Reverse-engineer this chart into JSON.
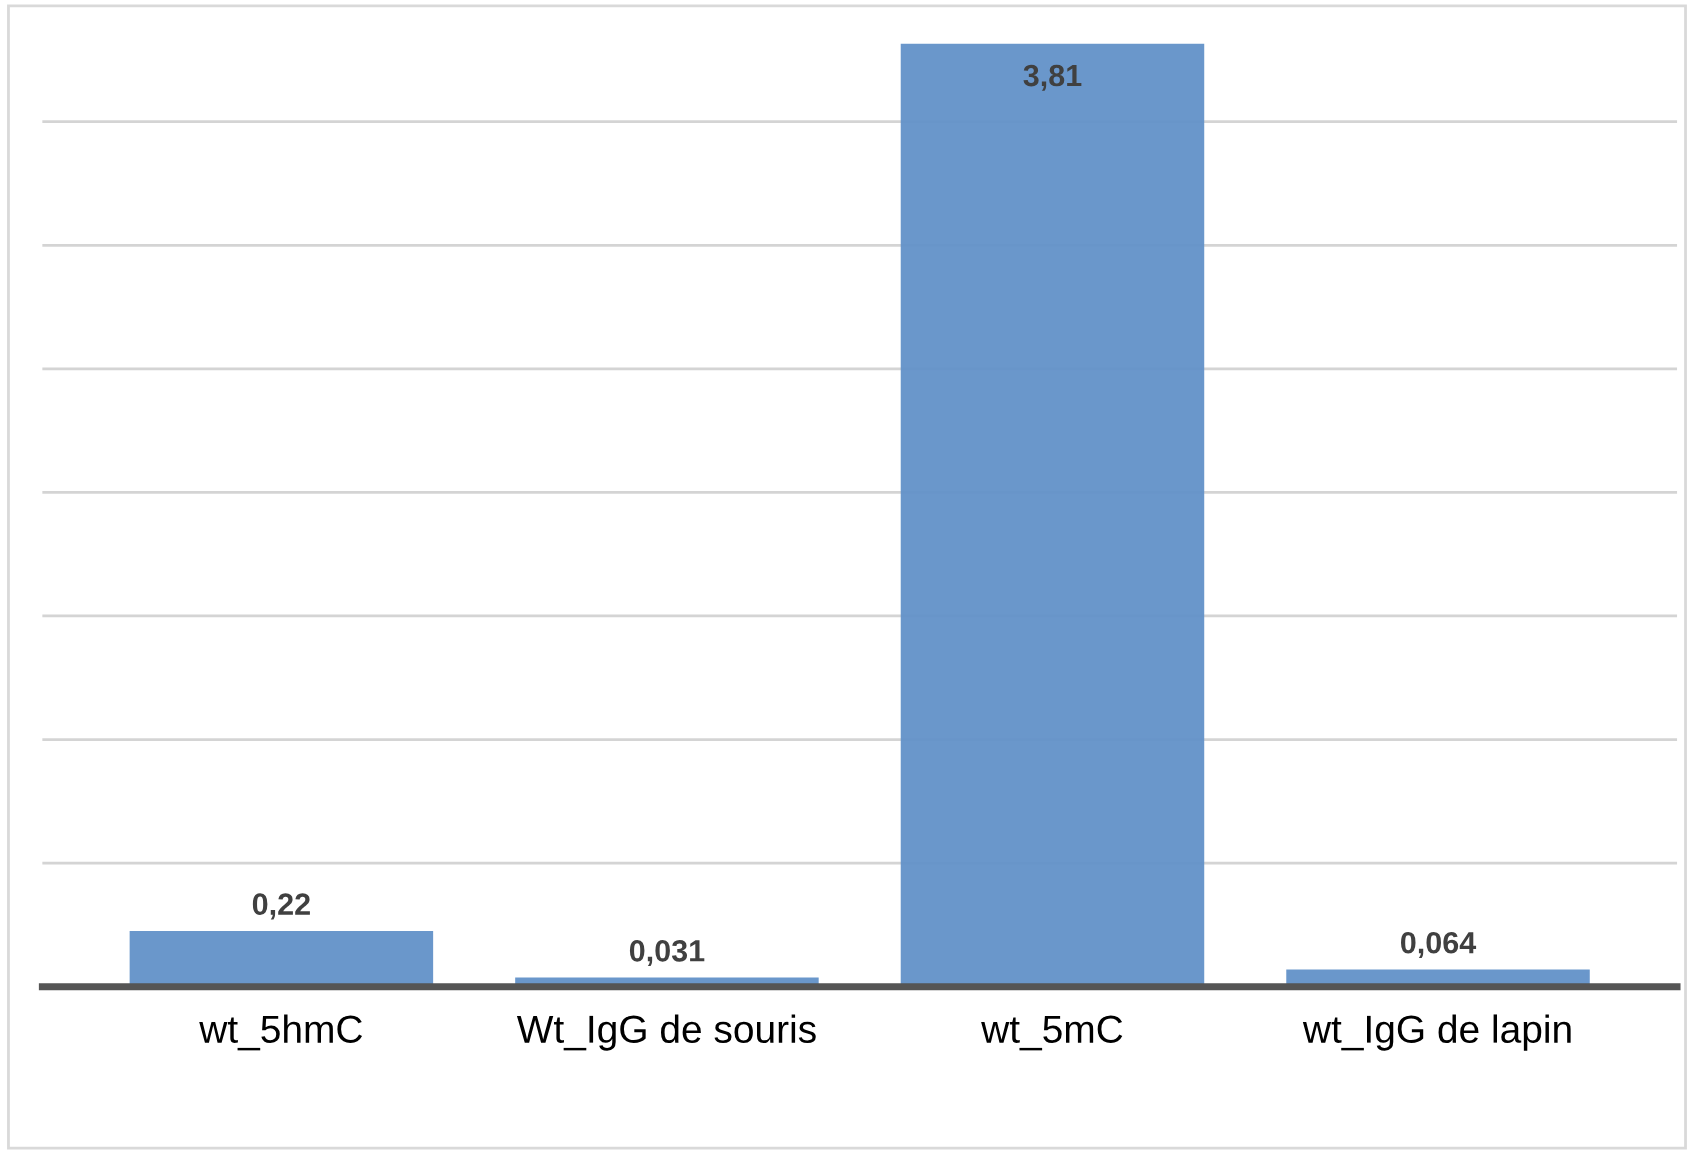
{
  "chart_data": {
    "type": "bar",
    "categories": [
      "wt_5hmC",
      "Wt_IgG de souris",
      "wt_5mC",
      "wt_IgG de lapin"
    ],
    "values": [
      0.22,
      0.031,
      3.81,
      0.064
    ],
    "value_labels": [
      "0,22",
      "0,031",
      "3,81",
      "0,064"
    ],
    "color": "#6392c9",
    "yticks": [
      {
        "value": 0,
        "label": null
      },
      {
        "value": 0.5,
        "label": null
      },
      {
        "value": 1,
        "label": null
      },
      {
        "value": 1.5,
        "label": null
      },
      {
        "value": 2,
        "label": null
      },
      {
        "value": 2.5,
        "label": null
      },
      {
        "value": 3,
        "label": null
      },
      {
        "value": 3.5,
        "label": null
      }
    ],
    "tick_labels": "x",
    "grid": "y",
    "legend": false
  }
}
